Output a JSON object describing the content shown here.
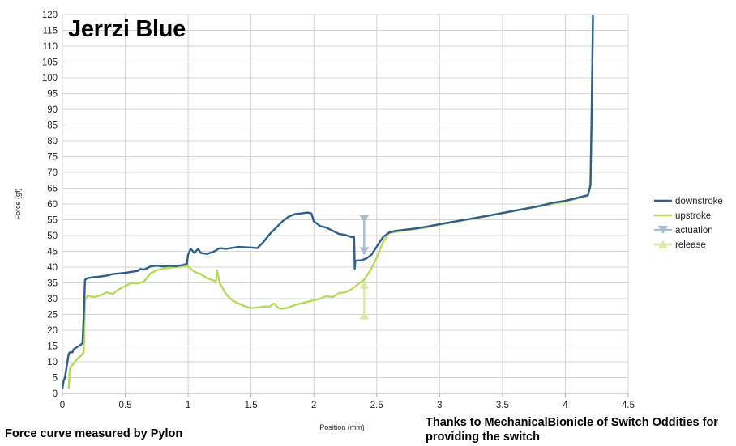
{
  "chart_data": {
    "type": "line",
    "title": "Jerrzi Blue",
    "xlabel": "Position (mm)",
    "ylabel": "Force (gf)",
    "xlim": [
      0,
      4.5
    ],
    "ylim": [
      0,
      120
    ],
    "x_ticks": [
      "0",
      "0.5",
      "1",
      "1.5",
      "2",
      "2.5",
      "3",
      "3.5",
      "4",
      "4.5"
    ],
    "y_ticks": [
      "0",
      "5",
      "10",
      "15",
      "20",
      "25",
      "30",
      "35",
      "40",
      "45",
      "50",
      "55",
      "60",
      "65",
      "70",
      "75",
      "80",
      "85",
      "90",
      "95",
      "100",
      "105",
      "110",
      "115",
      "120"
    ],
    "grid": true,
    "legend_position": "right",
    "series": [
      {
        "name": "downstroke",
        "color": "#2e5e8a",
        "points": [
          [
            0.0,
            1.5
          ],
          [
            0.01,
            4
          ],
          [
            0.02,
            5
          ],
          [
            0.03,
            7.5
          ],
          [
            0.04,
            10
          ],
          [
            0.05,
            12.5
          ],
          [
            0.06,
            13
          ],
          [
            0.08,
            13
          ],
          [
            0.09,
            14
          ],
          [
            0.11,
            14.5
          ],
          [
            0.13,
            15
          ],
          [
            0.15,
            15.5
          ],
          [
            0.16,
            16
          ],
          [
            0.17,
            25
          ],
          [
            0.18,
            36
          ],
          [
            0.2,
            36.5
          ],
          [
            0.25,
            36.8
          ],
          [
            0.3,
            37
          ],
          [
            0.35,
            37.3
          ],
          [
            0.4,
            37.8
          ],
          [
            0.45,
            38
          ],
          [
            0.5,
            38.2
          ],
          [
            0.55,
            38.5
          ],
          [
            0.6,
            38.8
          ],
          [
            0.62,
            39.4
          ],
          [
            0.65,
            39.2
          ],
          [
            0.7,
            40.2
          ],
          [
            0.75,
            40.5
          ],
          [
            0.8,
            40.2
          ],
          [
            0.85,
            40.4
          ],
          [
            0.9,
            40.3
          ],
          [
            0.95,
            40.6
          ],
          [
            0.99,
            41
          ],
          [
            1.0,
            44
          ],
          [
            1.02,
            45.8
          ],
          [
            1.05,
            44.5
          ],
          [
            1.08,
            45.8
          ],
          [
            1.1,
            44.5
          ],
          [
            1.15,
            44.2
          ],
          [
            1.2,
            44.8
          ],
          [
            1.25,
            46
          ],
          [
            1.3,
            45.8
          ],
          [
            1.4,
            46.4
          ],
          [
            1.5,
            46.2
          ],
          [
            1.55,
            46.0
          ],
          [
            1.6,
            48
          ],
          [
            1.65,
            50.5
          ],
          [
            1.7,
            52.5
          ],
          [
            1.75,
            54.5
          ],
          [
            1.8,
            56
          ],
          [
            1.85,
            56.8
          ],
          [
            1.9,
            57
          ],
          [
            1.95,
            57.3
          ],
          [
            1.98,
            57
          ],
          [
            2.0,
            54.5
          ],
          [
            2.05,
            53
          ],
          [
            2.1,
            52.5
          ],
          [
            2.15,
            51.5
          ],
          [
            2.2,
            50.5
          ],
          [
            2.25,
            50.2
          ],
          [
            2.3,
            49.5
          ],
          [
            2.32,
            49.5
          ],
          [
            2.325,
            39.5
          ],
          [
            2.33,
            42
          ],
          [
            2.38,
            42.2
          ],
          [
            2.42,
            42.8
          ],
          [
            2.46,
            44
          ],
          [
            2.5,
            46.5
          ],
          [
            2.55,
            49.5
          ],
          [
            2.6,
            51
          ],
          [
            2.65,
            51.5
          ],
          [
            2.7,
            51.7
          ],
          [
            2.8,
            52.2
          ],
          [
            2.9,
            52.8
          ],
          [
            3.0,
            53.6
          ],
          [
            3.2,
            55
          ],
          [
            3.4,
            56.4
          ],
          [
            3.6,
            57.9
          ],
          [
            3.8,
            59.4
          ],
          [
            3.9,
            60.4
          ],
          [
            4.0,
            61.0
          ],
          [
            4.1,
            62
          ],
          [
            4.18,
            62.8
          ],
          [
            4.2,
            66
          ],
          [
            4.21,
            90
          ],
          [
            4.22,
            120
          ]
        ]
      },
      {
        "name": "upstroke",
        "color": "#b9d95a",
        "points": [
          [
            0.05,
            1.5
          ],
          [
            0.06,
            8
          ],
          [
            0.08,
            9
          ],
          [
            0.1,
            10
          ],
          [
            0.12,
            11
          ],
          [
            0.15,
            12
          ],
          [
            0.17,
            13
          ],
          [
            0.18,
            29.5
          ],
          [
            0.2,
            31
          ],
          [
            0.25,
            30.5
          ],
          [
            0.3,
            31
          ],
          [
            0.35,
            32
          ],
          [
            0.4,
            31.5
          ],
          [
            0.45,
            33
          ],
          [
            0.5,
            34
          ],
          [
            0.55,
            35
          ],
          [
            0.6,
            34.8
          ],
          [
            0.65,
            35.5
          ],
          [
            0.7,
            38
          ],
          [
            0.75,
            39
          ],
          [
            0.8,
            39.5
          ],
          [
            0.9,
            40
          ],
          [
            0.95,
            40.2
          ],
          [
            1.0,
            40.2
          ],
          [
            1.05,
            38.5
          ],
          [
            1.1,
            37.8
          ],
          [
            1.15,
            36.5
          ],
          [
            1.2,
            35.8
          ],
          [
            1.22,
            35
          ],
          [
            1.23,
            39
          ],
          [
            1.25,
            35
          ],
          [
            1.3,
            31.5
          ],
          [
            1.35,
            29.5
          ],
          [
            1.4,
            28.5
          ],
          [
            1.45,
            27.6
          ],
          [
            1.5,
            27
          ],
          [
            1.55,
            27.2
          ],
          [
            1.6,
            27.5
          ],
          [
            1.65,
            27.5
          ],
          [
            1.68,
            28.5
          ],
          [
            1.72,
            27
          ],
          [
            1.75,
            26.8
          ],
          [
            1.8,
            27.2
          ],
          [
            1.85,
            28
          ],
          [
            1.9,
            28.5
          ],
          [
            1.95,
            29
          ],
          [
            2.0,
            29.5
          ],
          [
            2.05,
            30
          ],
          [
            2.1,
            30.8
          ],
          [
            2.15,
            30.5
          ],
          [
            2.2,
            31.8
          ],
          [
            2.25,
            32
          ],
          [
            2.3,
            33
          ],
          [
            2.35,
            34.5
          ],
          [
            2.4,
            36
          ],
          [
            2.45,
            39
          ],
          [
            2.5,
            43
          ],
          [
            2.55,
            48
          ],
          [
            2.6,
            50.8
          ],
          [
            2.7,
            51.5
          ],
          [
            2.8,
            52
          ],
          [
            2.9,
            52.6
          ],
          [
            3.0,
            53.4
          ],
          [
            3.2,
            54.9
          ],
          [
            3.4,
            56.3
          ],
          [
            3.6,
            57.8
          ],
          [
            3.8,
            59.3
          ],
          [
            4.0,
            60.8
          ],
          [
            4.1,
            61.8
          ],
          [
            4.18,
            62.6
          ],
          [
            4.2,
            66
          ],
          [
            4.21,
            90
          ],
          [
            4.22,
            120
          ]
        ]
      },
      {
        "name": "actuation",
        "color": "#a9bcd0",
        "x": 2.4,
        "y_range": [
          44,
          56.5
        ]
      },
      {
        "name": "release",
        "color": "#d8eaa5",
        "x": 2.4,
        "y_range": [
          23.5,
          35.5
        ]
      }
    ]
  },
  "footer": {
    "left_note": "Force curve measured by Pylon",
    "right_note": "Thanks to MechanicalBionicle of Switch Oddities for providing the switch"
  }
}
